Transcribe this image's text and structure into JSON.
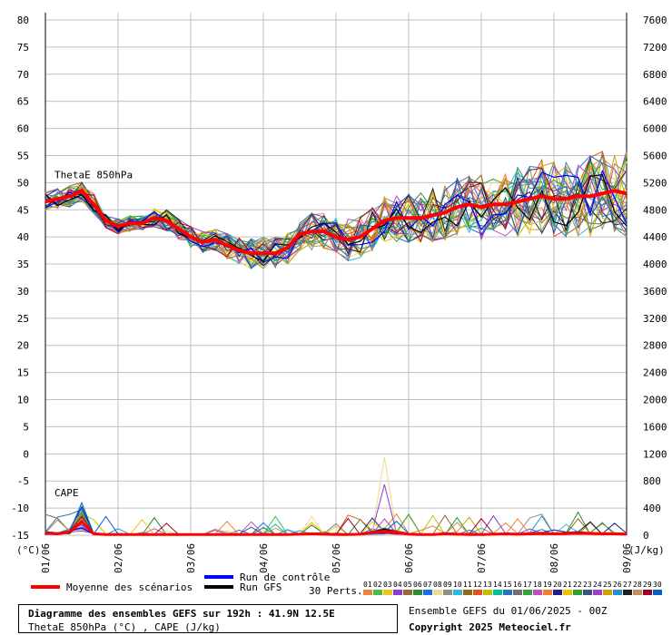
{
  "chart_data": {
    "type": "line",
    "left_axis_unit": "(°C)",
    "right_axis_unit": "(J/kg)",
    "left_ticks": [
      80,
      75,
      70,
      65,
      60,
      55,
      50,
      45,
      40,
      35,
      30,
      25,
      20,
      15,
      10,
      5,
      0,
      -5,
      -10,
      -15
    ],
    "right_ticks": [
      7600,
      7200,
      6800,
      6400,
      6000,
      5600,
      5200,
      4800,
      4400,
      4000,
      3600,
      3200,
      2800,
      2400,
      2000,
      1600,
      1200,
      800,
      400,
      0
    ],
    "ylim_theta": [
      -15,
      80
    ],
    "ylim_cape": [
      0,
      7600
    ],
    "x_labels": [
      "01/06",
      "02/06",
      "03/06",
      "04/06",
      "05/06",
      "06/06",
      "07/06",
      "08/06",
      "09/06"
    ],
    "theta_label": "ThetaE 850hPa",
    "cape_label": "CAPE",
    "theta_mean": [
      46.5,
      47,
      47.5,
      48.5,
      46,
      43,
      42,
      42.5,
      42.5,
      43.5,
      43,
      41.5,
      40,
      39,
      39.5,
      38.5,
      37.5,
      37,
      37,
      37,
      38,
      40.5,
      41,
      41,
      40,
      39.5,
      40,
      41.5,
      43,
      43.5,
      43.5,
      43.5,
      44,
      44.5,
      45.5,
      46,
      45.5,
      46,
      46,
      46.5,
      47,
      47.5,
      47,
      47,
      47.5,
      47.5,
      48,
      48.5,
      48
    ],
    "cape_mean": [
      30,
      20,
      50,
      200,
      20,
      10,
      10,
      10,
      10,
      10,
      10,
      10,
      10,
      10,
      10,
      10,
      10,
      10,
      10,
      10,
      10,
      15,
      20,
      15,
      10,
      10,
      15,
      40,
      60,
      40,
      15,
      10,
      10,
      20,
      15,
      10,
      10,
      15,
      20,
      15,
      20,
      25,
      20,
      25,
      30,
      25,
      20,
      20,
      15
    ],
    "ensemble_spread_theta": [
      2,
      2,
      2,
      2,
      2,
      1.5,
      1.5,
      1.5,
      1.5,
      2,
      2,
      2,
      2,
      2,
      2,
      2.5,
      2.5,
      3,
      3,
      3,
      3,
      3,
      3.5,
      3.5,
      3.5,
      4,
      4,
      4,
      4.5,
      4.5,
      4.5,
      5,
      5,
      5,
      5.5,
      5.5,
      6,
      6,
      6,
      6.5,
      6.5,
      7,
      7,
      7,
      7.5,
      7.5,
      8,
      8,
      8
    ],
    "legend": {
      "mean": "Moyenne des scénarios",
      "control": "Run de contrôle",
      "gfs": "Run GFS",
      "perts_label": "30 Perts.",
      "perts_numbers": [
        "01",
        "02",
        "03",
        "04",
        "05",
        "06",
        "07",
        "08",
        "09",
        "10",
        "11",
        "12",
        "13",
        "14",
        "15",
        "16",
        "17",
        "18",
        "19",
        "20",
        "21",
        "22",
        "23",
        "24",
        "25",
        "26",
        "27",
        "28",
        "29",
        "30"
      ]
    },
    "colors": {
      "mean": "#ff0000",
      "control": "#0000ff",
      "gfs": "#000000",
      "grid": "#c0c0c0",
      "perts": [
        "#e8873a",
        "#4db84d",
        "#e8c820",
        "#8c3ad0",
        "#8e6b3a",
        "#2a8c2a",
        "#1e6ee8",
        "#f0d890",
        "#8e8e8e",
        "#30b8e0",
        "#8c6b1a",
        "#e85020",
        "#c0c000",
        "#00c0a0",
        "#3070c0",
        "#707070",
        "#3aa03a",
        "#c050c0",
        "#f08030",
        "#202080",
        "#f0c000",
        "#30a030",
        "#405080",
        "#a040c0",
        "#d0a000",
        "#2090d0",
        "#202020",
        "#c09060",
        "#a00020",
        "#0060c0"
      ]
    }
  },
  "footer": {
    "title": "Diagramme des ensembles GEFS sur 192h : 41.9N 12.5E",
    "subtitle": "ThetaE 850hPa (°C) , CAPE (J/kg)",
    "run_info": "Ensemble GEFS du 01/06/2025 - 00Z",
    "copyright": "Copyright 2025 Meteociel.fr"
  }
}
